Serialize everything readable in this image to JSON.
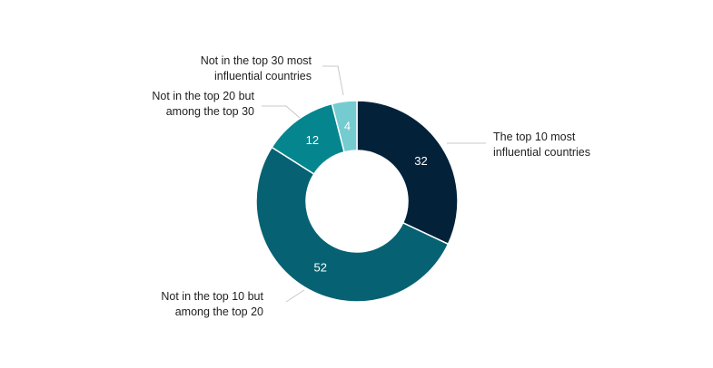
{
  "chart_data": {
    "type": "pie",
    "subtype": "donut",
    "slices": [
      {
        "label_lines": [
          "The top 10 most",
          "influential countries"
        ],
        "value": 32,
        "color": "#03223a"
      },
      {
        "label_lines": [
          "Not in the top 10 but",
          "among the top 20"
        ],
        "value": 52,
        "color": "#066272"
      },
      {
        "label_lines": [
          "Not in the top 20 but",
          "among the top 30"
        ],
        "value": 12,
        "color": "#05868f"
      },
      {
        "label_lines": [
          "Not in the top 30 most",
          "influential countries"
        ],
        "value": 4,
        "color": "#74ccd0"
      }
    ]
  }
}
